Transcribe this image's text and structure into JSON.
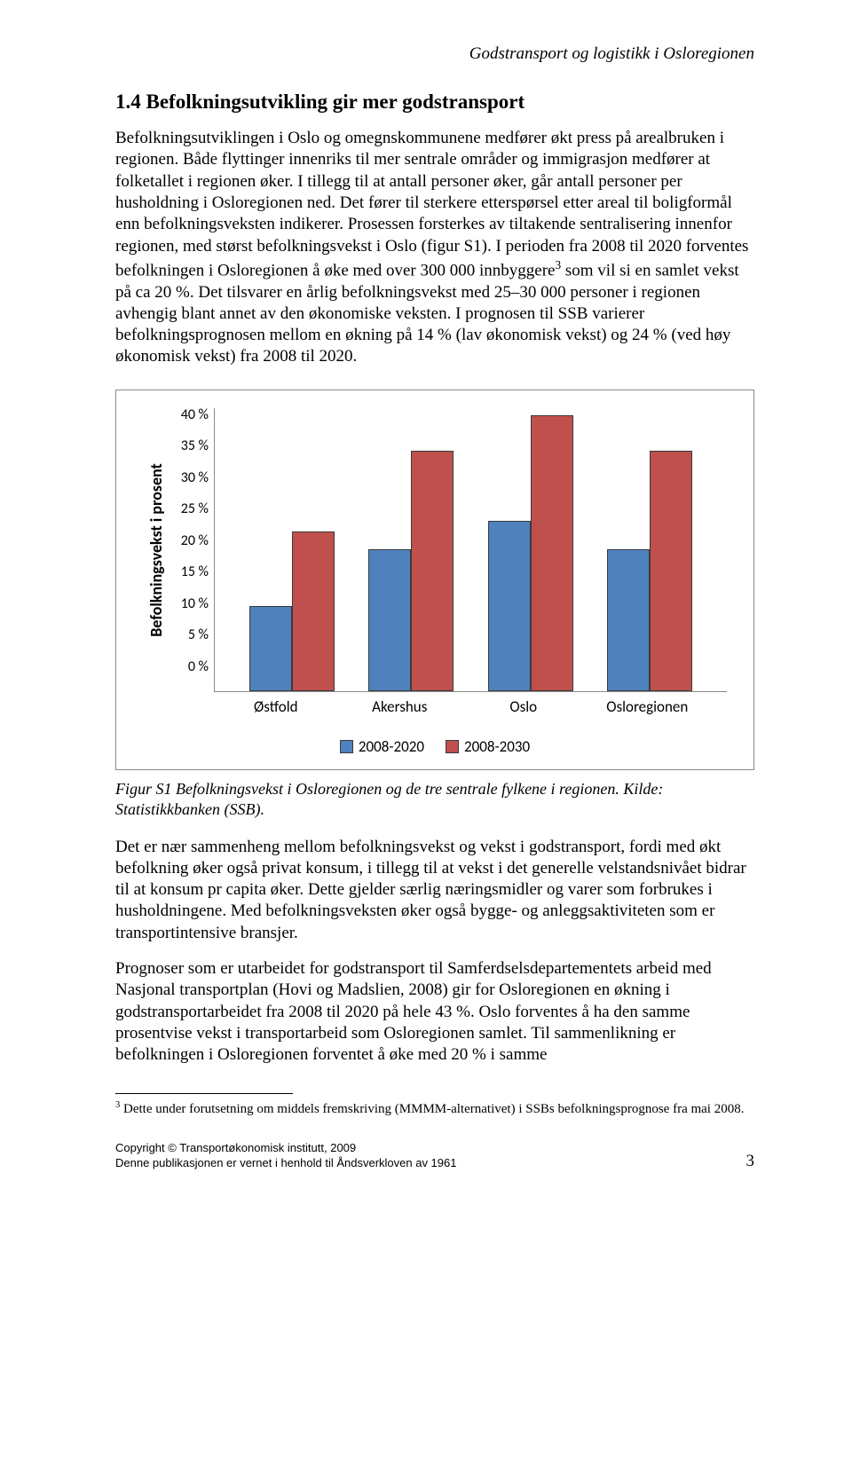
{
  "running_title": "Godstransport og logistikk i Osloregionen",
  "section_heading": "1.4 Befolkningsutvikling gir mer godstransport",
  "paragraph_1a": "Befolkningsutviklingen i Oslo og omegnskommunene medfører økt press på arealbruken i regionen. Både flyttinger innenriks til mer sentrale områder og immigrasjon medfører at folketallet i regionen øker. I tillegg til at antall personer øker, går antall personer per husholdning i Osloregionen ned. Det fører til sterkere etterspørsel etter areal til boligformål enn befolkningsveksten indikerer. Prosessen forsterkes av tiltakende sentralisering innenfor regionen, med størst befolkningsvekst i Oslo (figur S1). I perioden fra 2008 til 2020 forventes befolkningen i Osloregionen å øke med over 300 000 innbyggere",
  "paragraph_1b": " som vil si en samlet vekst på ca 20 %. Det tilsvarer en årlig befolkningsvekst med 25–30 000 personer i regionen avhengig blant annet av den økonomiske veksten. I prognosen til SSB varierer befolkningsprognosen mellom en økning på 14 % (lav økonomisk vekst) og 24 % (ved høy økonomisk vekst) fra 2008 til 2020.",
  "chart": {
    "type": "bar",
    "y_label": "Befolkningsvekst i prosent",
    "y_ticks": [
      "40 %",
      "35 %",
      "30 %",
      "25 %",
      "20 %",
      "15 %",
      "10 %",
      "5 %",
      "0 %"
    ],
    "y_max": 40,
    "categories": [
      "Østfold",
      "Akershus",
      "Oslo",
      "Osloregionen"
    ],
    "series": [
      {
        "name": "2008-2020",
        "color": "#4f81bd",
        "values": [
          12,
          20,
          24,
          20
        ]
      },
      {
        "name": "2008-2030",
        "color": "#c0504d",
        "values": [
          22.5,
          34,
          39,
          34
        ]
      }
    ],
    "bar_border": "#3a5a8a",
    "border_color": "#888888",
    "background": "#ffffff"
  },
  "figure_caption": "Figur S1 Befolkningsvekst i Osloregionen og de tre sentrale fylkene i regionen. Kilde: Statistikkbanken (SSB).",
  "paragraph_2": "Det er nær sammenheng mellom befolkningsvekst og vekst i godstransport, fordi med økt befolkning øker også privat konsum, i tillegg til at vekst i det generelle velstandsnivået bidrar til at konsum pr capita øker. Dette gjelder særlig næringsmidler og varer som forbrukes i husholdningene. Med befolkningsveksten øker også bygge- og anleggsaktiviteten som er transportintensive bransjer.",
  "paragraph_3": "Prognoser som er utarbeidet for godstransport til Samferdselsdepartementets arbeid med Nasjonal transportplan (Hovi og Madslien, 2008) gir for Osloregionen en økning i godstransportarbeidet fra 2008 til 2020 på hele 43 %. Oslo forventes å ha den samme prosentvise vekst i transportarbeid som Osloregionen samlet. Til sammenlikning er befolkningen i Osloregionen forventet å øke med 20 % i samme",
  "footnote_marker": "3",
  "footnote_text": " Dette under forutsetning om middels fremskriving (MMMM-alternativet) i SSBs befolkningsprognose fra mai 2008.",
  "footer_line1": "Copyright © Transportøkonomisk institutt, 2009",
  "footer_line2": "Denne publikasjonen er vernet i henhold til Åndsverkloven av 1961",
  "page_number": "3"
}
